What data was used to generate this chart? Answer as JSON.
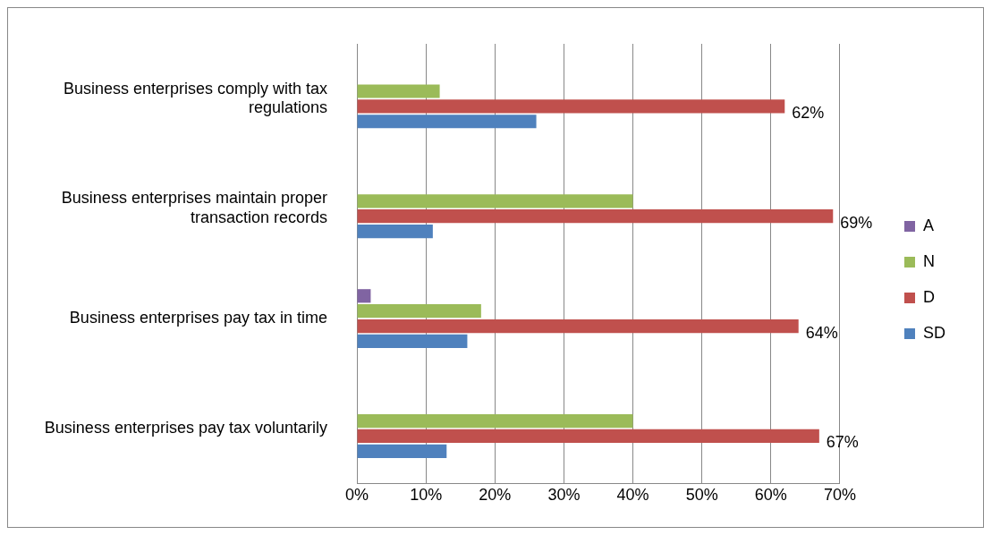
{
  "chart_data": {
    "type": "bar",
    "orientation": "horizontal",
    "categories": [
      "Business enterprises comply with tax regulations",
      "Business enterprises maintain proper transaction records",
      "Business enterprises pay tax in time",
      "Business enterprises pay tax voluntarily"
    ],
    "series": [
      {
        "name": "A",
        "color": "#8064a2",
        "values": [
          null,
          null,
          2,
          null
        ]
      },
      {
        "name": "N",
        "color": "#9bbb59",
        "values": [
          12,
          40,
          18,
          40
        ]
      },
      {
        "name": "D",
        "color": "#c0504d",
        "values": [
          62,
          69,
          64,
          67
        ],
        "value_labels": [
          "62%",
          "69%",
          "64%",
          "67%"
        ]
      },
      {
        "name": "SD",
        "color": "#4f81bd",
        "values": [
          26,
          11,
          16,
          13
        ]
      }
    ],
    "xlim": [
      0,
      70
    ],
    "xticks": [
      {
        "value": 0,
        "label": "0%"
      },
      {
        "value": 10,
        "label": "10%"
      },
      {
        "value": 20,
        "label": "20%"
      },
      {
        "value": 30,
        "label": "30%"
      },
      {
        "value": 40,
        "label": "40%"
      },
      {
        "value": 50,
        "label": "50%"
      },
      {
        "value": 60,
        "label": "60%"
      },
      {
        "value": 70,
        "label": "70%"
      }
    ],
    "grid": "x",
    "legend": "right"
  }
}
